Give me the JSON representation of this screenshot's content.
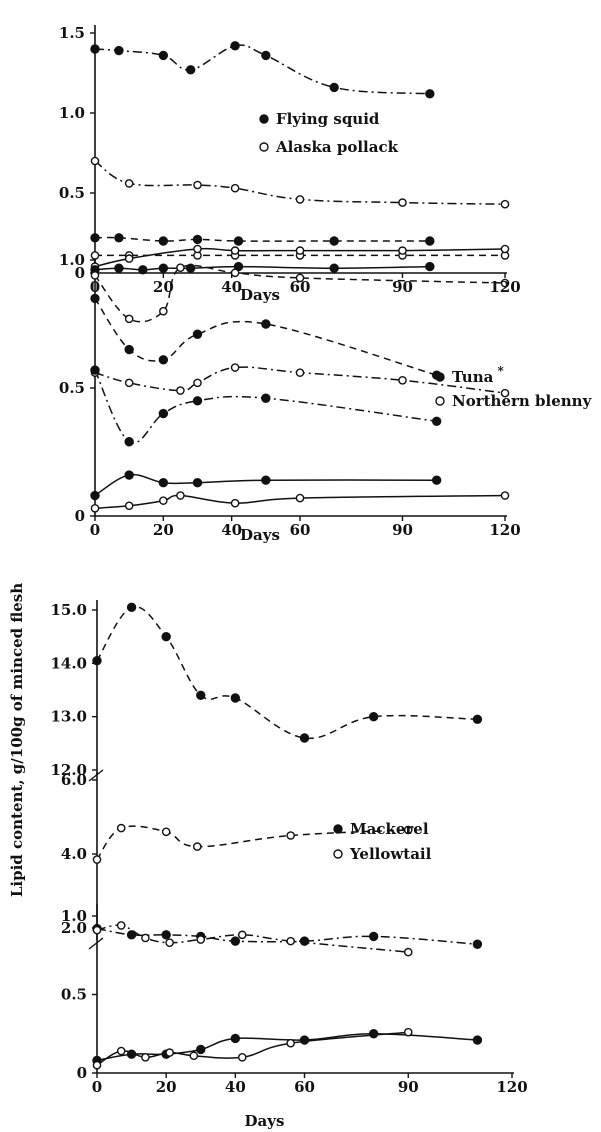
{
  "figure": {
    "ylabel": "Lipid content, g/100g of minced flesh"
  },
  "chart_data": [
    {
      "type": "line",
      "panel": "a",
      "xlabel": "Days",
      "ylabel": "",
      "xlim": [
        0,
        120
      ],
      "ylim": [
        0,
        1.5
      ],
      "xticks": [
        "0",
        "20",
        "40",
        "60",
        "90",
        "120"
      ],
      "yticks": [
        "0",
        "0.5",
        "1.0",
        "1.5"
      ],
      "legend": [
        "Flying squid",
        "Alaska pollack"
      ],
      "legend_placement": "center-right",
      "grid": false,
      "series": [
        {
          "name": "Flying squid",
          "marker": "filled",
          "style": "dashdot",
          "x": [
            0,
            7,
            20,
            28,
            41,
            50,
            70,
            98
          ],
          "y": [
            1.4,
            1.39,
            1.36,
            1.27,
            1.42,
            1.36,
            1.16,
            1.12
          ]
        },
        {
          "name": "Alaska pollack",
          "marker": "open",
          "style": "dashdot",
          "x": [
            0,
            10,
            30,
            41,
            60,
            90,
            120
          ],
          "y": [
            0.7,
            0.56,
            0.55,
            0.53,
            0.46,
            0.44,
            0.43
          ]
        },
        {
          "name": "Flying squid",
          "marker": "filled",
          "style": "dashed",
          "x": [
            0,
            7,
            20,
            30,
            42,
            70,
            98
          ],
          "y": [
            0.22,
            0.22,
            0.2,
            0.21,
            0.2,
            0.2,
            0.2
          ]
        },
        {
          "name": "Alaska pollack",
          "marker": "open",
          "style": "dashed",
          "x": [
            0,
            10,
            30,
            41,
            60,
            90,
            120
          ],
          "y": [
            0.11,
            0.11,
            0.11,
            0.11,
            0.11,
            0.11,
            0.11
          ]
        },
        {
          "name": "Alaska pollack",
          "marker": "open",
          "style": "solid",
          "x": [
            0,
            10,
            30,
            41,
            60,
            90,
            120
          ],
          "y": [
            0.04,
            0.09,
            0.15,
            0.14,
            0.14,
            0.14,
            0.15
          ]
        },
        {
          "name": "Flying squid",
          "marker": "filled",
          "style": "solid",
          "x": [
            0,
            7,
            14,
            20,
            28,
            42,
            70,
            98
          ],
          "y": [
            0.02,
            0.03,
            0.02,
            0.03,
            0.03,
            0.04,
            0.03,
            0.04
          ]
        }
      ]
    },
    {
      "type": "line",
      "panel": "b",
      "xlabel": "Days",
      "ylabel": "",
      "xlim": [
        0,
        120
      ],
      "ylim": [
        0,
        1.0
      ],
      "xticks": [
        "0",
        "20",
        "40",
        "60",
        "90",
        "120"
      ],
      "yticks": [
        "0",
        "0.5",
        "1.0"
      ],
      "legend": [
        "Tuna",
        "Northern blenny"
      ],
      "legend_note": "*",
      "legend_placement": "right",
      "grid": false,
      "series": [
        {
          "name": "Northern blenny",
          "marker": "open",
          "style": "dashed",
          "x": [
            0,
            10,
            20,
            25,
            41,
            60,
            120
          ],
          "y": [
            0.94,
            0.77,
            0.8,
            0.97,
            0.95,
            0.93,
            0.91
          ]
        },
        {
          "name": "Tuna",
          "marker": "filled",
          "style": "dashed",
          "x": [
            0,
            10,
            20,
            30,
            50,
            100
          ],
          "y": [
            0.85,
            0.65,
            0.61,
            0.71,
            0.75,
            0.55
          ]
        },
        {
          "name": "Northern blenny",
          "marker": "open",
          "style": "dashdot",
          "x": [
            0,
            10,
            25,
            30,
            41,
            60,
            90,
            120
          ],
          "y": [
            0.56,
            0.52,
            0.49,
            0.52,
            0.58,
            0.56,
            0.53,
            0.48
          ]
        },
        {
          "name": "Tuna",
          "marker": "filled",
          "style": "dashdot",
          "x": [
            0,
            10,
            20,
            30,
            50,
            100
          ],
          "y": [
            0.57,
            0.29,
            0.4,
            0.45,
            0.46,
            0.37
          ]
        },
        {
          "name": "Tuna",
          "marker": "filled",
          "style": "solid",
          "x": [
            0,
            10,
            20,
            30,
            50,
            100
          ],
          "y": [
            0.08,
            0.16,
            0.13,
            0.13,
            0.14,
            0.14
          ]
        },
        {
          "name": "Northern blenny",
          "marker": "open",
          "style": "solid",
          "x": [
            0,
            10,
            20,
            25,
            41,
            60,
            120
          ],
          "y": [
            0.03,
            0.04,
            0.06,
            0.08,
            0.05,
            0.07,
            0.08
          ]
        }
      ]
    },
    {
      "type": "line",
      "panel": "c",
      "xlabel": "Days",
      "ylabel": "Lipid content, g/100g of minced flesh",
      "xlim": [
        0,
        120
      ],
      "y_axis_broken": true,
      "y_segments": [
        {
          "ylim": [
            0,
            1.0
          ],
          "yticks": [
            "0",
            "0.5",
            "1.0"
          ]
        },
        {
          "ylim": [
            2.0,
            6.0
          ],
          "yticks": [
            "2.0",
            "4.0",
            "6.0"
          ]
        },
        {
          "ylim": [
            12.0,
            15.0
          ],
          "yticks": [
            "12.0",
            "13.0",
            "14.0",
            "15.0"
          ]
        }
      ],
      "xticks": [
        "0",
        "20",
        "40",
        "60",
        "90",
        "120"
      ],
      "legend": [
        "Mackerel",
        "Yellowtail"
      ],
      "legend_placement": "right",
      "grid": false,
      "series": [
        {
          "name": "Mackerel",
          "marker": "filled",
          "style": "dashed",
          "x": [
            0,
            10,
            20,
            30,
            40,
            60,
            80,
            110
          ],
          "y": [
            14.05,
            15.05,
            14.5,
            13.4,
            13.35,
            12.6,
            13.0,
            12.95
          ]
        },
        {
          "name": "Yellowtail",
          "marker": "open",
          "style": "dashed",
          "x": [
            0,
            7,
            20,
            29,
            56,
            90
          ],
          "y": [
            3.85,
            4.7,
            4.6,
            4.2,
            4.5,
            4.65
          ]
        },
        {
          "name": "Mackerel",
          "marker": "filled",
          "style": "dashdot",
          "x": [
            0,
            10,
            20,
            30,
            40,
            60,
            80,
            110
          ],
          "y": [
            0.92,
            0.88,
            0.88,
            0.87,
            0.84,
            0.84,
            0.87,
            0.82
          ]
        },
        {
          "name": "Yellowtail",
          "marker": "open",
          "style": "dashdot",
          "x": [
            0,
            7,
            14,
            21,
            30,
            42,
            56,
            90
          ],
          "y": [
            0.91,
            0.94,
            0.86,
            0.83,
            0.85,
            0.88,
            0.84,
            0.77
          ]
        },
        {
          "name": "Mackerel",
          "marker": "filled",
          "style": "solid",
          "x": [
            0,
            10,
            20,
            30,
            40,
            60,
            80,
            110
          ],
          "y": [
            0.08,
            0.12,
            0.12,
            0.15,
            0.22,
            0.21,
            0.25,
            0.21
          ]
        },
        {
          "name": "Yellowtail",
          "marker": "open",
          "style": "solid",
          "x": [
            0,
            7,
            14,
            21,
            28,
            42,
            56,
            90
          ],
          "y": [
            0.05,
            0.14,
            0.1,
            0.13,
            0.11,
            0.1,
            0.19,
            0.26
          ]
        }
      ]
    }
  ]
}
